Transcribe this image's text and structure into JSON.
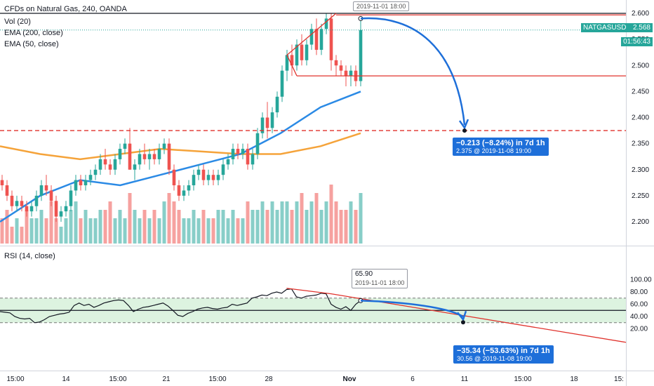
{
  "chart_data": [
    {
      "type": "candlestick",
      "title": "CFDs on Natural Gas, 240, OANDA",
      "indicators": [
        "Vol (20)",
        "EMA (200, close)",
        "EMA (50, close)"
      ],
      "symbol_tag": "NATGASUSD",
      "last_price": "2.568",
      "countdown": "01:56:43",
      "ylim": [
        2.15,
        2.62
      ],
      "y_ticks": [
        "2.600",
        "2.550",
        "2.500",
        "2.450",
        "2.400",
        "2.350",
        "2.300",
        "2.250",
        "2.200"
      ],
      "x_ticks": [
        "15:00",
        "14",
        "15:00",
        "21",
        "15:00",
        "28",
        "Nov",
        "6",
        "11",
        "15:00",
        "18",
        "15:"
      ],
      "candles": [
        [
          2.28,
          2.29,
          2.26,
          2.27
        ],
        [
          2.27,
          2.28,
          2.24,
          2.25
        ],
        [
          2.25,
          2.26,
          2.22,
          2.23
        ],
        [
          2.23,
          2.25,
          2.22,
          2.24
        ],
        [
          2.24,
          2.25,
          2.22,
          2.23
        ],
        [
          2.23,
          2.24,
          2.21,
          2.22
        ],
        [
          2.22,
          2.24,
          2.21,
          2.23
        ],
        [
          2.23,
          2.26,
          2.22,
          2.25
        ],
        [
          2.25,
          2.28,
          2.24,
          2.27
        ],
        [
          2.27,
          2.29,
          2.25,
          2.26
        ],
        [
          2.26,
          2.27,
          2.23,
          2.24
        ],
        [
          2.24,
          2.25,
          2.2,
          2.21
        ],
        [
          2.21,
          2.23,
          2.2,
          2.22
        ],
        [
          2.22,
          2.24,
          2.21,
          2.23
        ],
        [
          2.23,
          2.27,
          2.22,
          2.26
        ],
        [
          2.26,
          2.29,
          2.25,
          2.28
        ],
        [
          2.28,
          2.29,
          2.26,
          2.27
        ],
        [
          2.27,
          2.29,
          2.26,
          2.28
        ],
        [
          2.28,
          2.3,
          2.27,
          2.29
        ],
        [
          2.29,
          2.31,
          2.28,
          2.3
        ],
        [
          2.3,
          2.33,
          2.29,
          2.32
        ],
        [
          2.32,
          2.34,
          2.3,
          2.31
        ],
        [
          2.31,
          2.32,
          2.29,
          2.3
        ],
        [
          2.3,
          2.33,
          2.29,
          2.32
        ],
        [
          2.32,
          2.35,
          2.31,
          2.34
        ],
        [
          2.34,
          2.36,
          2.33,
          2.35
        ],
        [
          2.35,
          2.38,
          2.3,
          2.3
        ],
        [
          2.3,
          2.32,
          2.28,
          2.31
        ],
        [
          2.31,
          2.34,
          2.3,
          2.33
        ],
        [
          2.33,
          2.35,
          2.31,
          2.32
        ],
        [
          2.32,
          2.34,
          2.3,
          2.33
        ],
        [
          2.33,
          2.34,
          2.31,
          2.32
        ],
        [
          2.32,
          2.35,
          2.31,
          2.34
        ],
        [
          2.34,
          2.36,
          2.33,
          2.35
        ],
        [
          2.35,
          2.36,
          2.29,
          2.3
        ],
        [
          2.3,
          2.31,
          2.26,
          2.27
        ],
        [
          2.27,
          2.28,
          2.24,
          2.25
        ],
        [
          2.25,
          2.27,
          2.24,
          2.26
        ],
        [
          2.26,
          2.28,
          2.25,
          2.27
        ],
        [
          2.27,
          2.3,
          2.26,
          2.29
        ],
        [
          2.29,
          2.31,
          2.28,
          2.3
        ],
        [
          2.3,
          2.31,
          2.27,
          2.28
        ],
        [
          2.28,
          2.3,
          2.27,
          2.29
        ],
        [
          2.29,
          2.3,
          2.27,
          2.28
        ],
        [
          2.28,
          2.3,
          2.27,
          2.29
        ],
        [
          2.29,
          2.32,
          2.28,
          2.31
        ],
        [
          2.31,
          2.33,
          2.3,
          2.32
        ],
        [
          2.32,
          2.35,
          2.31,
          2.34
        ],
        [
          2.34,
          2.35,
          2.32,
          2.33
        ],
        [
          2.33,
          2.35,
          2.32,
          2.34
        ],
        [
          2.34,
          2.35,
          2.3,
          2.31
        ],
        [
          2.31,
          2.34,
          2.3,
          2.33
        ],
        [
          2.33,
          2.38,
          2.32,
          2.37
        ],
        [
          2.37,
          2.41,
          2.36,
          2.4
        ],
        [
          2.4,
          2.43,
          2.36,
          2.38
        ],
        [
          2.38,
          2.42,
          2.37,
          2.41
        ],
        [
          2.41,
          2.45,
          2.4,
          2.44
        ],
        [
          2.44,
          2.5,
          2.43,
          2.49
        ],
        [
          2.49,
          2.53,
          2.47,
          2.52
        ],
        [
          2.52,
          2.54,
          2.48,
          2.5
        ],
        [
          2.5,
          2.55,
          2.49,
          2.54
        ],
        [
          2.54,
          2.56,
          2.5,
          2.51
        ],
        [
          2.51,
          2.55,
          2.5,
          2.54
        ],
        [
          2.54,
          2.58,
          2.53,
          2.57
        ],
        [
          2.57,
          2.59,
          2.52,
          2.53
        ],
        [
          2.53,
          2.58,
          2.52,
          2.57
        ],
        [
          2.57,
          2.6,
          2.56,
          2.59
        ],
        [
          2.59,
          2.6,
          2.49,
          2.51
        ],
        [
          2.51,
          2.52,
          2.48,
          2.5
        ],
        [
          2.5,
          2.51,
          2.48,
          2.49
        ],
        [
          2.49,
          2.5,
          2.46,
          2.48
        ],
        [
          2.48,
          2.5,
          2.46,
          2.49
        ],
        [
          2.49,
          2.5,
          2.46,
          2.47
        ],
        [
          2.47,
          2.59,
          2.46,
          2.568
        ]
      ],
      "volumes": [
        3,
        4,
        2,
        3,
        2,
        4,
        3,
        3,
        4,
        3,
        5,
        3,
        2,
        3,
        4,
        5,
        3,
        4,
        3,
        3,
        4,
        4,
        5,
        3,
        4,
        3,
        6,
        4,
        3,
        4,
        3,
        4,
        3,
        5,
        6,
        5,
        4,
        3,
        3,
        4,
        3,
        4,
        3,
        3,
        4,
        4,
        3,
        4,
        3,
        3,
        5,
        4,
        4,
        5,
        4,
        5,
        4,
        5,
        5,
        4,
        5,
        6,
        4,
        5,
        6,
        4,
        5,
        7,
        5,
        4,
        4,
        5,
        4,
        6
      ],
      "ema50": [
        2.2,
        2.25,
        2.28,
        2.27,
        2.29,
        2.31,
        2.33,
        2.37,
        2.42,
        2.45
      ],
      "ema200": [
        2.345,
        2.33,
        2.32,
        2.33,
        2.34,
        2.335,
        2.33,
        2.33,
        2.345,
        2.37
      ],
      "resistance": 2.6,
      "support": 2.48,
      "target_level": 2.375
    },
    {
      "type": "line",
      "title": "RSI (14, close)",
      "ylim": [
        0,
        110
      ],
      "y_ticks": [
        "100.00",
        "80.00",
        "60.00",
        "40.00",
        "20.00"
      ],
      "upper_band": 70,
      "lower_band": 30,
      "midline": 50,
      "values": [
        48,
        47,
        46,
        40,
        37,
        36,
        37,
        30,
        31,
        35,
        40,
        42,
        44,
        45,
        47,
        58,
        62,
        58,
        60,
        55,
        58,
        62,
        64,
        66,
        67,
        66,
        58,
        48,
        52,
        55,
        56,
        58,
        60,
        62,
        57,
        50,
        42,
        40,
        45,
        48,
        52,
        54,
        55,
        53,
        52,
        54,
        55,
        60,
        58,
        60,
        62,
        70,
        72,
        75,
        74,
        78,
        80,
        78,
        84,
        85,
        72,
        70,
        73,
        74,
        75,
        78,
        77,
        60,
        55,
        52,
        56,
        50,
        60,
        65.9
      ]
    }
  ],
  "annotations": {
    "price_time_label": "2019-11-01 18:00",
    "price_forecast_line1": "−0.213 (−8.24%) in 7d 1h",
    "price_forecast_line2": "2.375 @ 2019-11-08  19:00",
    "rsi_value_label": "65.90",
    "rsi_time_label": "2019-11-01 18:00",
    "rsi_forecast_line1": "−35.34 (−53.63%) in 7d 1h",
    "rsi_forecast_line2": "30.56 @ 2019-11-08  19:00"
  },
  "colors": {
    "up": "#26a69a",
    "down": "#ef5350",
    "ema50": "#2b8ae5",
    "ema200": "#f5a33a",
    "rsi_band": "#d1efd5",
    "forecast": "#1e6fd9",
    "trend": "#e0322c"
  }
}
